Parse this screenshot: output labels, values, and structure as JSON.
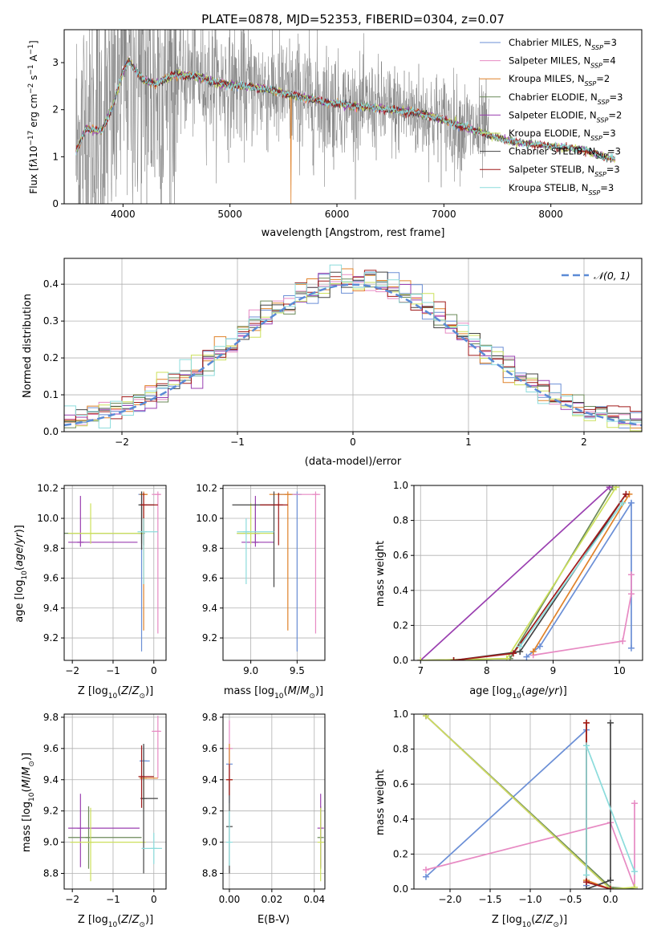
{
  "title": "PLATE=0878, MJD=52353, FIBERID=0304, z=0.07",
  "colors": {
    "Chabrier MILES": "#6b8fd6",
    "Salpeter MILES": "#e78ac3",
    "Kroupa MILES": "#e0822a",
    "Chabrier ELODIE": "#6c8a5a",
    "Salpeter ELODIE": "#9a3fb0",
    "Kroupa ELODIE": "#cce05c",
    "Chabrier STELIB": "#444444",
    "Salpeter STELIB": "#a01a1a",
    "Kroupa STELIB": "#8cdcdc"
  },
  "chart_data": [
    {
      "id": "spectrum",
      "type": "line",
      "xlabel": "wavelength [Angstrom, rest frame]",
      "ylabel": "Flux [f$_\\lambda$10$^{-17}$ erg cm$^{-2}$ s$^{-1}$ A$^{-1}$]",
      "xlim": [
        3450,
        8850
      ],
      "ylim": [
        0,
        3.7
      ],
      "xticks": [
        4000,
        5000,
        6000,
        7000,
        8000
      ],
      "yticks": [
        0,
        1,
        2,
        3
      ],
      "data_color": "#808080",
      "data_x_range": [
        3560,
        7420
      ],
      "model_anchor_x": [
        3560,
        3650,
        3800,
        3900,
        4000,
        4050,
        4200,
        4300,
        4500,
        4700,
        4900,
        5100,
        5300,
        5500,
        5700,
        5900,
        6100,
        6300,
        6500,
        6700,
        6900,
        7100,
        7300,
        7500,
        7700,
        7900,
        8100,
        8300,
        8500,
        8600
      ],
      "model_anchor_y": [
        1.1,
        1.6,
        1.55,
        2.05,
        2.8,
        3.05,
        2.6,
        2.55,
        2.75,
        2.7,
        2.55,
        2.5,
        2.45,
        2.35,
        2.25,
        2.15,
        2.1,
        2.05,
        2.0,
        1.95,
        1.85,
        1.7,
        1.55,
        1.4,
        1.3,
        1.25,
        1.2,
        1.15,
        1.0,
        0.95
      ],
      "legend_location": "upper right",
      "legend": [
        {
          "main": "Chabrier MILES, N",
          "sub": "SSP",
          "tail": "=3"
        },
        {
          "main": "Salpeter MILES, N",
          "sub": "SSP",
          "tail": "=4"
        },
        {
          "main": "Kroupa MILES, N",
          "sub": "SSP",
          "tail": "=2"
        },
        {
          "main": "Chabrier ELODIE, N",
          "sub": "SSP",
          "tail": "=3"
        },
        {
          "main": "Salpeter ELODIE, N",
          "sub": "SSP",
          "tail": "=2"
        },
        {
          "main": "Kroupa ELODIE, N",
          "sub": "SSP",
          "tail": "=3"
        },
        {
          "main": "Chabrier STELIB, N",
          "sub": "SSP",
          "tail": "=3"
        },
        {
          "main": "Salpeter STELIB, N",
          "sub": "SSP",
          "tail": "=3"
        },
        {
          "main": "Kroupa STELIB, N",
          "sub": "SSP",
          "tail": "=3"
        }
      ]
    },
    {
      "id": "residuals",
      "type": "histogram",
      "xlabel": "(data-model)/error",
      "ylabel": "Normed distribution",
      "xlim": [
        -2.5,
        2.5
      ],
      "ylim": [
        0,
        0.47
      ],
      "xticks": [
        -2,
        -1,
        0,
        1,
        2
      ],
      "yticks": [
        0.0,
        0.1,
        0.2,
        0.3,
        0.4
      ],
      "grid": true,
      "bin_width": 0.1,
      "gaussian_label": "N(0,1)",
      "gaussian_color": "#5b8bd6",
      "legend_location": "upper right"
    },
    {
      "id": "age_vs_Z",
      "type": "errorbar",
      "xlabel": "Z [log10(Z/Z⊙)]",
      "ylabel": "age  [log10(age/yr)]",
      "xlim": [
        -2.2,
        0.3
      ],
      "ylim": [
        9.05,
        10.22
      ],
      "xticks": [
        -2,
        -1,
        0
      ],
      "yticks": [
        9.2,
        9.4,
        9.6,
        9.8,
        10.0,
        10.2
      ],
      "grid": true,
      "points": [
        {
          "model": "Chabrier MILES",
          "x": -0.3,
          "y": 10.16,
          "xerr": [
            0.05,
            0.1
          ],
          "yerr": [
            1.05,
            0.02
          ]
        },
        {
          "model": "Salpeter MILES",
          "x": 0.1,
          "y": 10.16,
          "xerr": [
            0.15,
            0.05
          ],
          "yerr": [
            0.93,
            0.02
          ]
        },
        {
          "model": "Kroupa MILES",
          "x": -0.25,
          "y": 10.16,
          "xerr": [
            0.1,
            0.1
          ],
          "yerr": [
            0.91,
            0.02
          ]
        },
        {
          "model": "Chabrier ELODIE",
          "x": -0.3,
          "y": 9.9,
          "xerr": [
            1.9,
            0.05
          ],
          "yerr": [
            0.07,
            0.2
          ]
        },
        {
          "model": "Salpeter ELODIE",
          "x": -1.8,
          "y": 9.84,
          "xerr": [
            0.3,
            1.4
          ],
          "yerr": [
            0.03,
            0.31
          ]
        },
        {
          "model": "Kroupa ELODIE",
          "x": -1.55,
          "y": 9.9,
          "xerr": [
            0.55,
            1.3
          ],
          "yerr": [
            0.07,
            0.2
          ]
        },
        {
          "model": "Chabrier STELIB",
          "x": -0.3,
          "y": 10.09,
          "xerr": [
            0.05,
            0.3
          ],
          "yerr": [
            0.3,
            0.09
          ]
        },
        {
          "model": "Salpeter STELIB",
          "x": -0.25,
          "y": 10.09,
          "xerr": [
            0.05,
            0.35
          ],
          "yerr": [
            0.27,
            0.08
          ]
        },
        {
          "model": "Kroupa STELIB",
          "x": -0.25,
          "y": 9.91,
          "xerr": [
            0.15,
            0.35
          ],
          "yerr": [
            0.35,
            0.09
          ]
        }
      ]
    },
    {
      "id": "age_vs_mass",
      "type": "errorbar",
      "xlabel": "mass [log10(M/M⊙)]",
      "ylabel": "",
      "xlim": [
        8.7,
        9.8
      ],
      "ylim": [
        9.05,
        10.22
      ],
      "xticks": [
        9.0,
        9.5
      ],
      "yticks": [
        9.2,
        9.4,
        9.6,
        9.8,
        10.0,
        10.2
      ],
      "grid": true,
      "points": [
        {
          "model": "Chabrier MILES",
          "x": 9.5,
          "y": 10.16,
          "xerr": [
            0.2,
            0.05
          ],
          "yerr": [
            1.05,
            0.02
          ]
        },
        {
          "model": "Salpeter MILES",
          "x": 9.7,
          "y": 10.16,
          "xerr": [
            0.25,
            0.05
          ],
          "yerr": [
            0.93,
            0.02
          ]
        },
        {
          "model": "Kroupa MILES",
          "x": 9.4,
          "y": 10.16,
          "xerr": [
            0.2,
            0.05
          ],
          "yerr": [
            0.91,
            0.02
          ]
        },
        {
          "model": "Chabrier ELODIE",
          "x": 9.05,
          "y": 9.9,
          "xerr": [
            0.2,
            0.05
          ],
          "yerr": [
            0.07,
            0.2
          ]
        },
        {
          "model": "Salpeter ELODIE",
          "x": 9.05,
          "y": 9.84,
          "xerr": [
            0.15,
            0.2
          ],
          "yerr": [
            0.03,
            0.31
          ]
        },
        {
          "model": "Kroupa ELODIE",
          "x": 9.0,
          "y": 9.9,
          "xerr": [
            0.15,
            0.25
          ],
          "yerr": [
            0.07,
            0.2
          ]
        },
        {
          "model": "Chabrier STELIB",
          "x": 9.25,
          "y": 10.09,
          "xerr": [
            0.45,
            0.1
          ],
          "yerr": [
            0.55,
            0.09
          ]
        },
        {
          "model": "Salpeter STELIB",
          "x": 9.3,
          "y": 10.09,
          "xerr": [
            0.2,
            0.1
          ],
          "yerr": [
            0.27,
            0.08
          ]
        },
        {
          "model": "Kroupa STELIB",
          "x": 8.95,
          "y": 9.91,
          "xerr": [
            0.1,
            0.3
          ],
          "yerr": [
            0.35,
            0.09
          ]
        }
      ]
    },
    {
      "id": "weight_vs_age",
      "type": "line",
      "xlabel": "age  [log10(age/yr)]",
      "ylabel": "mass weight",
      "xlim": [
        6.9,
        10.35
      ],
      "ylim": [
        0,
        1
      ],
      "xticks": [
        7,
        8,
        9,
        10
      ],
      "yticks": [
        0.0,
        0.2,
        0.4,
        0.6,
        0.8,
        1.0
      ],
      "grid": true,
      "series": [
        {
          "model": "Chabrier MILES",
          "x": [
            8.6,
            8.8,
            10.18,
            10.18
          ],
          "y": [
            0.02,
            0.08,
            0.9,
            0.07
          ]
        },
        {
          "model": "Salpeter MILES",
          "x": [
            8.7,
            10.05,
            10.18,
            10.18
          ],
          "y": [
            0.03,
            0.11,
            0.38,
            0.49
          ]
        },
        {
          "model": "Kroupa MILES",
          "x": [
            8.7,
            10.15
          ],
          "y": [
            0.05,
            0.95
          ]
        },
        {
          "model": "Chabrier ELODIE",
          "x": [
            7.0,
            8.35,
            9.9
          ],
          "y": [
            0.0,
            0.01,
            0.99
          ]
        },
        {
          "model": "Salpeter ELODIE",
          "x": [
            7.0,
            9.85
          ],
          "y": [
            0.0,
            0.99
          ]
        },
        {
          "model": "Kroupa ELODIE",
          "x": [
            7.0,
            8.3,
            9.95
          ],
          "y": [
            0.0,
            0.01,
            0.99
          ]
        },
        {
          "model": "Chabrier STELIB",
          "x": [
            7.5,
            8.5,
            10.1
          ],
          "y": [
            0.0,
            0.05,
            0.95
          ]
        },
        {
          "model": "Salpeter STELIB",
          "x": [
            7.5,
            8.4,
            10.1
          ],
          "y": [
            0.0,
            0.04,
            0.95
          ]
        },
        {
          "model": "Kroupa STELIB",
          "x": [
            8.5,
            10.05
          ],
          "y": [
            0.08,
            0.9
          ]
        }
      ]
    },
    {
      "id": "mass_vs_Z",
      "type": "errorbar",
      "xlabel": "Z [log10(Z/Z⊙)]",
      "ylabel": "mass [log10(M/M⊙)]",
      "xlim": [
        -2.2,
        0.3
      ],
      "ylim": [
        8.7,
        9.82
      ],
      "xticks": [
        -2,
        -1,
        0
      ],
      "yticks": [
        8.8,
        9.0,
        9.2,
        9.4,
        9.6,
        9.8
      ],
      "grid": true,
      "points": [
        {
          "model": "Chabrier MILES",
          "x": -0.25,
          "y": 9.52,
          "xerr": [
            0.1,
            0.15
          ],
          "yerr": [
            0.1,
            0.1
          ]
        },
        {
          "model": "Salpeter MILES",
          "x": 0.1,
          "y": 9.71,
          "xerr": [
            0.15,
            0.05
          ],
          "yerr": [
            0.3,
            0.1
          ]
        },
        {
          "model": "Kroupa MILES",
          "x": -0.25,
          "y": 9.41,
          "xerr": [
            0.1,
            0.35
          ],
          "yerr": [
            0.2,
            0.12
          ]
        },
        {
          "model": "Chabrier ELODIE",
          "x": -1.6,
          "y": 9.03,
          "xerr": [
            0.5,
            1.3
          ],
          "yerr": [
            0.2,
            0.2
          ]
        },
        {
          "model": "Salpeter ELODIE",
          "x": -1.8,
          "y": 9.09,
          "xerr": [
            0.3,
            1.45
          ],
          "yerr": [
            0.25,
            0.22
          ]
        },
        {
          "model": "Kroupa ELODIE",
          "x": -1.55,
          "y": 9.0,
          "xerr": [
            0.5,
            1.35
          ],
          "yerr": [
            0.25,
            0.22
          ]
        },
        {
          "model": "Chabrier STELIB",
          "x": -0.25,
          "y": 9.28,
          "xerr": [
            0.05,
            0.35
          ],
          "yerr": [
            0.48,
            0.35
          ]
        },
        {
          "model": "Salpeter STELIB",
          "x": -0.3,
          "y": 9.42,
          "xerr": [
            0.05,
            0.3
          ],
          "yerr": [
            0.2,
            0.2
          ]
        },
        {
          "model": "Kroupa STELIB",
          "x": 0.0,
          "y": 8.96,
          "xerr": [
            0.3,
            0.2
          ],
          "yerr": [
            0.1,
            0.1
          ]
        }
      ]
    },
    {
      "id": "mass_vs_ebv",
      "type": "errorbar",
      "xlabel": "E(B-V)",
      "ylabel": "",
      "xlim": [
        -0.003,
        0.045
      ],
      "ylim": [
        8.7,
        9.82
      ],
      "xticks": [
        0.0,
        0.02,
        0.04
      ],
      "xticklabels": [
        "0.00",
        "0.02",
        "0.04"
      ],
      "yticks": [
        8.8,
        9.0,
        9.2,
        9.4,
        9.6,
        9.8
      ],
      "grid": true,
      "points": [
        {
          "model": "Chabrier MILES",
          "x": 0.0,
          "y": 9.5,
          "xerr": [
            0,
            0
          ],
          "yerr": [
            0.25,
            0.1
          ]
        },
        {
          "model": "Salpeter MILES",
          "x": 0.0,
          "y": 9.6,
          "xerr": [
            0,
            0
          ],
          "yerr": [
            0.2,
            0.18
          ]
        },
        {
          "model": "Kroupa MILES",
          "x": 0.0,
          "y": 9.4,
          "xerr": [
            0,
            0
          ],
          "yerr": [
            0.1,
            0.23
          ]
        },
        {
          "model": "Chabrier ELODIE",
          "x": 0.043,
          "y": 9.03,
          "xerr": [
            0,
            0
          ],
          "yerr": [
            0.2,
            0.2
          ]
        },
        {
          "model": "Salpeter ELODIE",
          "x": 0.043,
          "y": 9.09,
          "xerr": [
            0,
            0
          ],
          "yerr": [
            0.25,
            0.22
          ]
        },
        {
          "model": "Kroupa ELODIE",
          "x": 0.043,
          "y": 9.0,
          "xerr": [
            0,
            0
          ],
          "yerr": [
            0.25,
            0.22
          ]
        },
        {
          "model": "Chabrier STELIB",
          "x": 0.0,
          "y": 9.1,
          "xerr": [
            0,
            0
          ],
          "yerr": [
            0.3,
            0.3
          ]
        },
        {
          "model": "Salpeter STELIB",
          "x": 0.0,
          "y": 9.4,
          "xerr": [
            0,
            0
          ],
          "yerr": [
            0.1,
            0.1
          ]
        },
        {
          "model": "Kroupa STELIB",
          "x": 0.0,
          "y": 9.0,
          "xerr": [
            0,
            0
          ],
          "yerr": [
            0.15,
            0.2
          ]
        }
      ]
    },
    {
      "id": "weight_vs_Z",
      "type": "line",
      "xlabel": "Z [log10(Z/Z⊙)]",
      "ylabel": "mass weight",
      "xlim": [
        -2.45,
        0.4
      ],
      "ylim": [
        0,
        1
      ],
      "xticks": [
        -2.0,
        -1.5,
        -1.0,
        -0.5,
        0.0
      ],
      "xticklabels": [
        "−2.0",
        "−1.5",
        "−1.0",
        "−0.5",
        "0.0"
      ],
      "yticks": [
        0.0,
        0.2,
        0.4,
        0.6,
        0.8,
        1.0
      ],
      "grid": true,
      "series": [
        {
          "model": "Chabrier MILES",
          "x": [
            -2.3,
            -0.3,
            -0.3
          ],
          "y": [
            0.07,
            0.91,
            0.02
          ]
        },
        {
          "model": "Salpeter MILES",
          "x": [
            -2.3,
            0.0,
            0.3,
            0.3
          ],
          "y": [
            0.11,
            0.38,
            0.01,
            0.49
          ]
        },
        {
          "model": "Kroupa MILES",
          "x": [
            -0.3,
            -0.3,
            0.0
          ],
          "y": [
            0.95,
            0.05,
            0.0
          ]
        },
        {
          "model": "Chabrier ELODIE",
          "x": [
            -2.3,
            0.0,
            0.3
          ],
          "y": [
            0.99,
            0.01,
            0.0
          ]
        },
        {
          "model": "Salpeter ELODIE",
          "x": [
            -2.3,
            0.0
          ],
          "y": [
            0.99,
            0.0
          ]
        },
        {
          "model": "Kroupa ELODIE",
          "x": [
            -2.3,
            0.0,
            0.3
          ],
          "y": [
            0.99,
            0.0,
            0.01
          ]
        },
        {
          "model": "Chabrier STELIB",
          "x": [
            -0.3,
            0.0,
            0.0
          ],
          "y": [
            0.0,
            0.05,
            0.95
          ]
        },
        {
          "model": "Salpeter STELIB",
          "x": [
            -0.3,
            -0.3,
            0.0
          ],
          "y": [
            0.95,
            0.04,
            0.0
          ]
        },
        {
          "model": "Kroupa STELIB",
          "x": [
            -0.3,
            -0.3,
            0.3
          ],
          "y": [
            0.08,
            0.82,
            0.1
          ]
        }
      ]
    }
  ]
}
